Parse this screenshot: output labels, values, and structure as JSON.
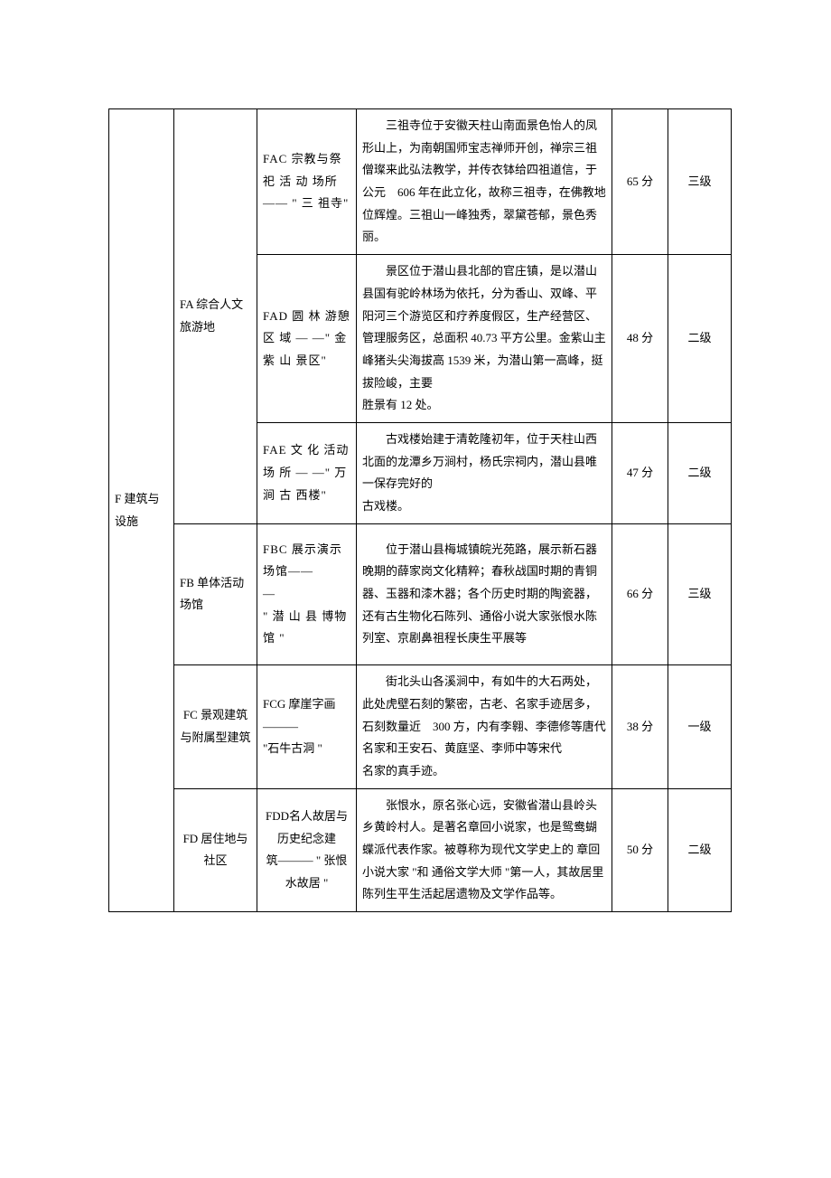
{
  "table": {
    "main_label": "F 建筑与设施",
    "rows": [
      {
        "sub": "FA 综合人文旅游地",
        "code": "FAC 宗教与祭 祀 活 动 场所\n—— \" 三 祖寺\"",
        "desc": "三祖寺位于安徽天柱山南面景色怡人的凤形山上，为南朝国师宝志禅师开创，禅宗三祖僧璨来此弘法教学，并传衣钵给四祖道信，于公元　606 年在此立化，故称三祖寺，在佛教地位辉煌。三祖山一峰独秀，翠黛苍郁，景色秀丽。",
        "score": "65 分",
        "grade": "三级"
      },
      {
        "sub": "",
        "code": "FAD 圆 林 游憩 区 域 — —\" 金 紫 山 景区\"",
        "desc": "景区位于潜山县北部的官庄镇，是以潜山县国有驼岭林场为依托，分为香山、双峰、平阳河三个游览区和疗养度假区，生产经营区、管理服务区，总面积 40.73 平方公里。金紫山主峰猪头尖海拔高 1539 米，为潜山第一高峰，挺拔险峻，主要\n胜景有 12 处。",
        "score": "48 分",
        "grade": "二级"
      },
      {
        "sub": "",
        "code": "FAE 文 化 活动 场 所 — —\" 万 涧 古 西楼\"",
        "desc": "古戏楼始建于清乾隆初年，位于天柱山西北面的龙潭乡万涧村，杨氏宗祠内，潜山县唯一保存完好的\n古戏楼。",
        "score": "47 分",
        "grade": "二级"
      },
      {
        "sub": "FB 单体活动场馆",
        "code": "FBC 展示演示场馆——\n—\n\" 潜 山 县 博物馆 \"",
        "desc": "位于潜山县梅城镇皖光苑路，展示新石器晚期的薛家岗文化精粹；春秋战国时期的青铜器、玉器和漆木器；各个历史时期的陶瓷器，还有古生物化石陈列、通俗小说大家张恨水陈列室、京剧鼻祖程长庚生平展等",
        "score": "66 分",
        "grade": "三级"
      },
      {
        "sub": "FC 景观建筑与附属型建筑",
        "code": "FCG 摩崖字画———\n\"石牛古洞 \"",
        "desc": "街北头山各溪涧中，有如牛的大石两处，此处虎壁石刻的繁密，古老、名家手迹居多，石刻数量近　300 方，内有李翱、李德修等唐代名家和王安石、黄庭坚、李师中等宋代\n名家的真手迹。",
        "score": "38 分",
        "grade": "一级"
      },
      {
        "sub": "FD 居住地与社区",
        "code": "FDD名人故居与历史纪念建\n筑——— \" 张恨水故居 \"",
        "desc": "张恨水，原名张心远，安徽省潜山县岭头乡黄岭村人。是著名章回小说家，也是鸳鸯蝴蝶派代表作家。被尊称为现代文学史上的 章回小说大家 \"和 通俗文学大师 \"第一人，其故居里陈列生平生活起居遗物及文学作品等。",
        "score": "50 分",
        "grade": "二级"
      }
    ]
  },
  "style": {
    "page_bg": "#ffffff",
    "border_color": "#000000",
    "text_color": "#000000",
    "font_size_pt": 10,
    "line_height": 1.9
  }
}
